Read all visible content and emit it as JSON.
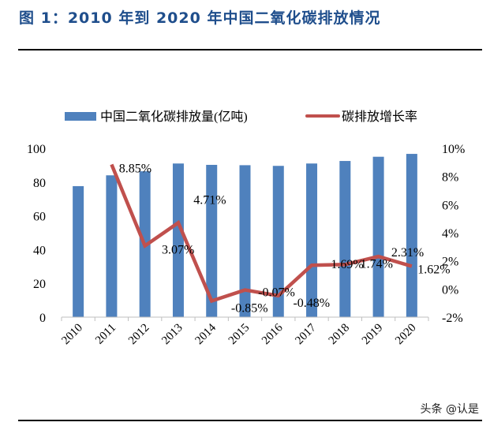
{
  "title": "图 1：2010 年到 2020 年中国二氧化碳排放情况",
  "watermark": "头条 @认是",
  "colors": {
    "title": "#1F4E8C",
    "bars": "#4F81BD",
    "line": "#C0504D"
  },
  "chart_data": {
    "type": "bar+line",
    "categories": [
      "2010",
      "2011",
      "2012",
      "2013",
      "2014",
      "2015",
      "2016",
      "2017",
      "2018",
      "2019",
      "2020"
    ],
    "series": [
      {
        "name": "中国二氧化碳排放量(亿吨)",
        "type": "bar",
        "axis": "left",
        "values": [
          77.6,
          84.0,
          86.4,
          91.0,
          90.2,
          90.0,
          89.6,
          91.0,
          92.5,
          95.0,
          96.7
        ]
      },
      {
        "name": "碳排放增长率",
        "type": "line",
        "axis": "right",
        "values": [
          null,
          8.85,
          3.07,
          4.71,
          -0.85,
          -0.07,
          -0.48,
          1.69,
          1.74,
          2.31,
          1.62
        ],
        "labels": [
          "",
          "8.85%",
          "3.07%",
          "4.71%",
          "-0.85%",
          "-0.07%",
          "-0.48%",
          "1.69%",
          "1.74%",
          "2.31%",
          "1.62%"
        ]
      }
    ],
    "ylim_left": [
      0,
      100
    ],
    "yticks_left": [
      "0",
      "20",
      "40",
      "60",
      "80",
      "100"
    ],
    "ylim_right": [
      -2,
      10
    ],
    "yticks_right": [
      "-2%",
      "0%",
      "2%",
      "4%",
      "6%",
      "8%",
      "10%"
    ],
    "grid": false,
    "legend": "top"
  }
}
